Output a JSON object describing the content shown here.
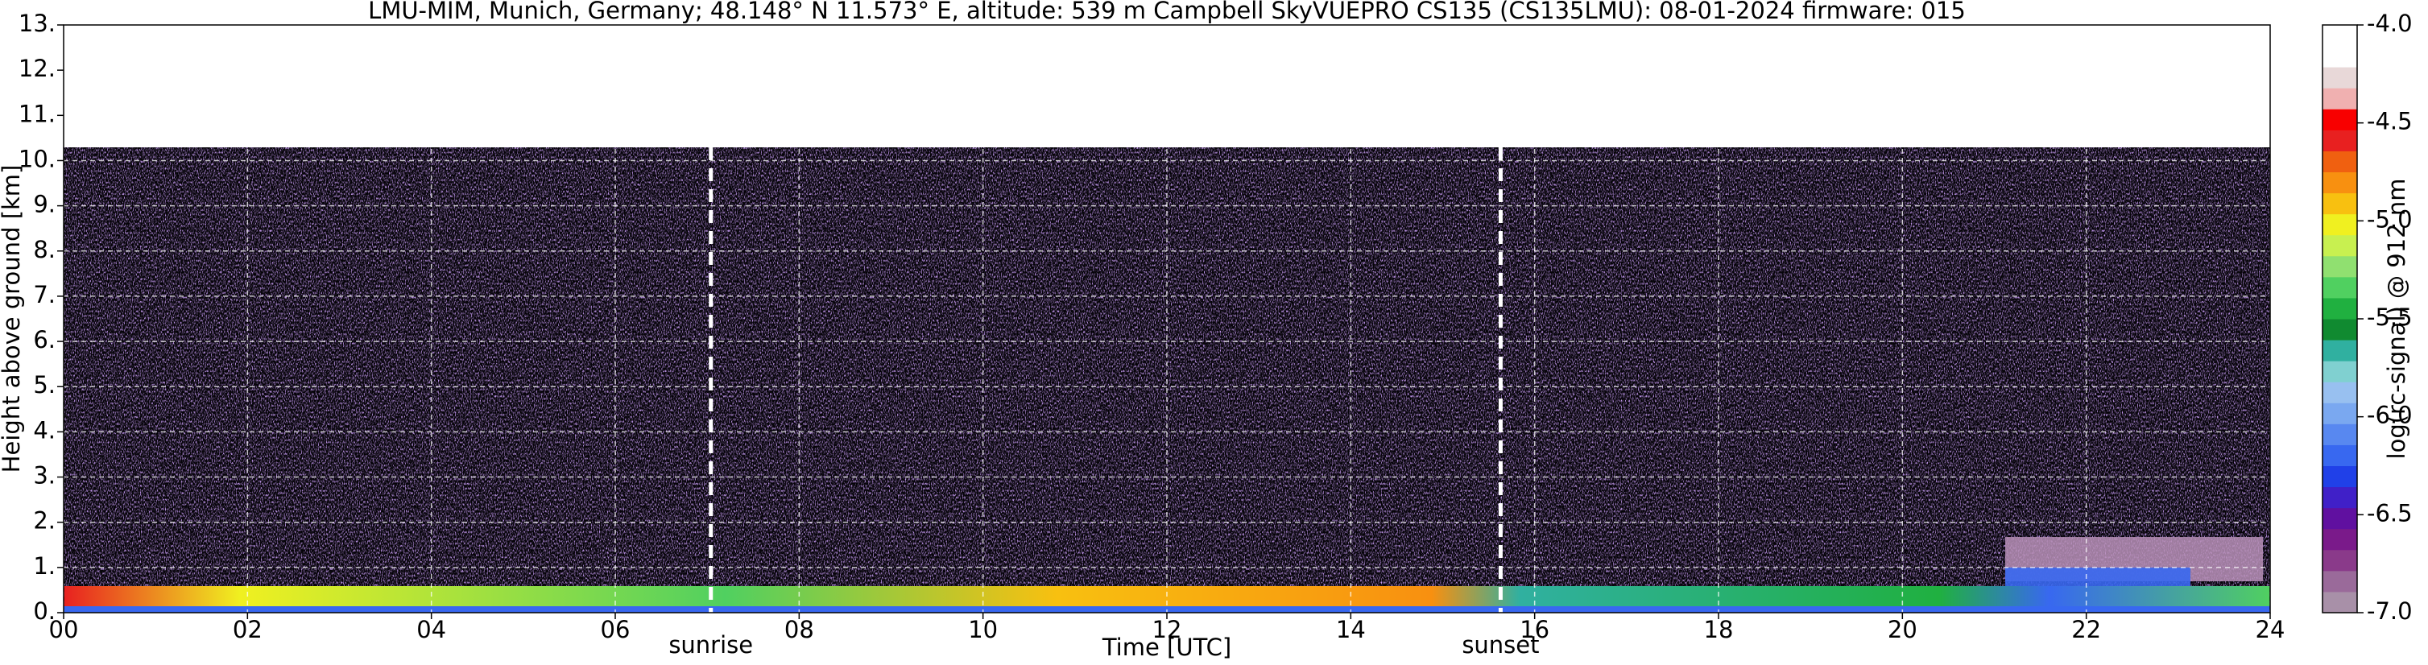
{
  "chart_data": {
    "type": "heatmap",
    "title": "LMU-MIM, Munich, Germany; 48.148° N 11.573° E, altitude: 539 m    Campbell SkyVUEPRO CS135 (CS135LMU): 08-01-2024    firmware: 015",
    "x_label": "Time [UTC]",
    "y_label": "Height above ground [km]",
    "xlim": [
      0,
      24
    ],
    "xticks": [
      {
        "value": 0,
        "label": "00"
      },
      {
        "value": 2,
        "label": "02"
      },
      {
        "value": 4,
        "label": "04"
      },
      {
        "value": 6,
        "label": "06"
      },
      {
        "value": 8,
        "label": "08"
      },
      10,
      12,
      14,
      16,
      18,
      20,
      22,
      24
    ],
    "ylim": [
      0,
      13
    ],
    "yticks": [
      {
        "value": 0,
        "label": "0."
      },
      {
        "value": 1,
        "label": "1."
      },
      {
        "value": 2,
        "label": "2."
      },
      {
        "value": 3,
        "label": "3."
      },
      {
        "value": 4,
        "label": "4."
      },
      {
        "value": 5,
        "label": "5."
      },
      {
        "value": 6,
        "label": "6."
      },
      {
        "value": 7,
        "label": "7."
      },
      {
        "value": 8,
        "label": "8."
      },
      {
        "value": 9,
        "label": "9."
      },
      {
        "value": 10,
        "label": "10."
      },
      {
        "value": 11,
        "label": "11."
      },
      {
        "value": 12,
        "label": "12."
      },
      {
        "value": 13,
        "label": "13."
      }
    ],
    "grid": true,
    "annotations": [
      {
        "text": "sunrise",
        "x": 7.04
      },
      {
        "text": "sunset",
        "x": 15.63
      }
    ],
    "colorbar": {
      "label": "log(rc-signal) @ 912 nm",
      "lim": [
        -7,
        -4
      ],
      "ticks": [
        {
          "value": -7,
          "label": "-7.0"
        },
        -6.5,
        {
          "value": -6,
          "label": "-6.0"
        },
        -5.5,
        {
          "value": -5,
          "label": "-5.0"
        },
        -4.5,
        {
          "value": -4,
          "label": "-4.0"
        }
      ],
      "colors": [
        "#a890a8",
        "#9a6a9a",
        "#8a3a8a",
        "#7a1a8a",
        "#6010a0",
        "#4020c8",
        "#2040e8",
        "#3868f0",
        "#5888f0",
        "#7aa8f0",
        "#98c0f0",
        "#80d0d0",
        "#30b0a0",
        "#108a30",
        "#20b040",
        "#50d060",
        "#90e070",
        "#c8f050",
        "#f0f020",
        "#f8c010",
        "#f89010",
        "#f06010",
        "#e82020",
        "#f80000",
        "#f0b0b0",
        "#e8d8d8",
        "#ffffff",
        "#ffffff"
      ]
    }
  }
}
